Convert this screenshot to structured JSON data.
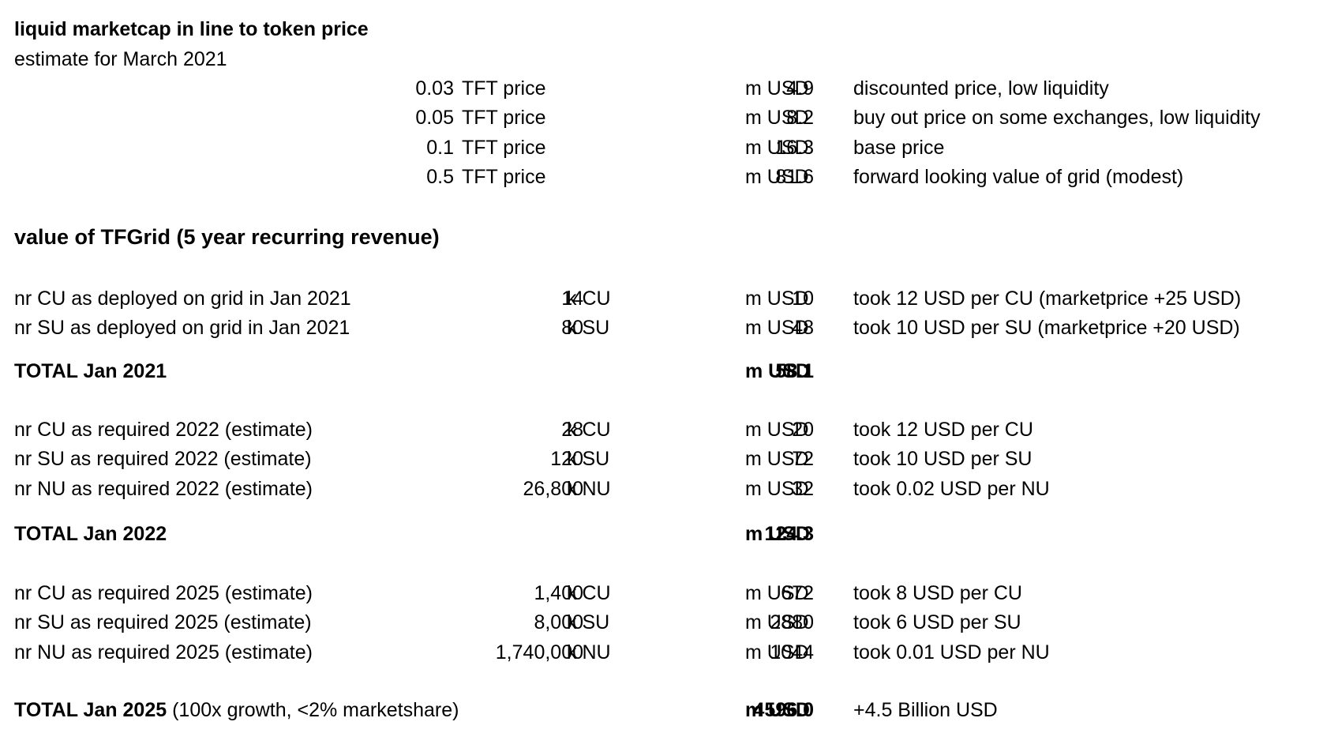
{
  "header": {
    "title": "liquid marketcap in line to token price",
    "subtitle": "estimate for March 2021"
  },
  "price_rows": [
    {
      "price": "0.03",
      "price_label": "TFT price",
      "value": "4.9",
      "unit": "m USD",
      "note": "discounted price, low liquidity"
    },
    {
      "price": "0.05",
      "price_label": "TFT price",
      "value": "8.2",
      "unit": "m USD",
      "note": "buy out price on some exchanges, low liquidity"
    },
    {
      "price": "0.1",
      "price_label": "TFT price",
      "value": "16.3",
      "unit": "m USD",
      "note": "base price"
    },
    {
      "price": "0.5",
      "price_label": "TFT price",
      "value": "81.6",
      "unit": "m USD",
      "note": "forward looking value of grid (modest)"
    }
  ],
  "grid_section": {
    "title": "value of TFGrid (5 year recurring revenue)"
  },
  "jan2021": {
    "rows": [
      {
        "label": "nr CU as deployed on grid in Jan 2021",
        "qty": "14",
        "qty_unit": "k CU",
        "value": "10",
        "unit": "m USD",
        "note": "took 12 USD per CU (marketprice +25 USD)"
      },
      {
        "label": "nr SU as deployed on grid in Jan 2021",
        "qty": "80",
        "qty_unit": "k SU",
        "value": "48",
        "unit": "m USD",
        "note": "took 10 USD per SU (marketprice +20 USD)"
      }
    ],
    "total": {
      "label": "TOTAL Jan 2021",
      "value": "58.1",
      "unit": "m USD"
    }
  },
  "jan2022": {
    "rows": [
      {
        "label": "nr CU as required 2022 (estimate)",
        "qty": "28",
        "qty_unit": "k CU",
        "value": "20",
        "unit": "m USD",
        "note": "took 12 USD per CU"
      },
      {
        "label": "nr SU as required 2022 (estimate)",
        "qty": "120",
        "qty_unit": "k SU",
        "value": "72",
        "unit": "m USD",
        "note": "took 10 USD per SU"
      },
      {
        "label": "nr NU as required 2022 (estimate)",
        "qty": "26,800",
        "qty_unit": "k NU",
        "value": "32",
        "unit": "m USD",
        "note": "took 0.02 USD per NU"
      }
    ],
    "total": {
      "label": "TOTAL Jan 2022",
      "value": "124.3",
      "unit": "m USD"
    }
  },
  "jan2025": {
    "rows": [
      {
        "label": "nr CU as required 2025 (estimate)",
        "qty": "1,400",
        "qty_unit": "k CU",
        "value": "672",
        "unit": "m USD",
        "note": "took 8 USD per CU"
      },
      {
        "label": "nr SU as required 2025 (estimate)",
        "qty": "8,000",
        "qty_unit": "k SU",
        "value": "2880",
        "unit": "m USD",
        "note": "took 6 USD per SU"
      },
      {
        "label": "nr NU as required 2025 (estimate)",
        "qty": "1,740,000",
        "qty_unit": "k NU",
        "value": "1044",
        "unit": "m USD",
        "note": "took 0.01 USD per NU"
      }
    ],
    "total": {
      "label": "TOTAL Jan 2025",
      "label_suffix": " (100x growth, <2% marketshare)",
      "value": "4596.0",
      "unit": "m USD",
      "note": "+4.5 Billion USD"
    }
  }
}
